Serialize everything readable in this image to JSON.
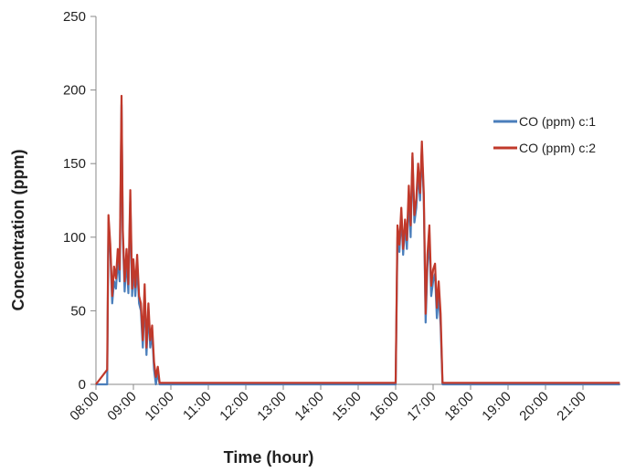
{
  "chart_data": {
    "type": "line",
    "title": "",
    "xlabel": "Time (hour)",
    "ylabel": "Concentration (ppm)",
    "xlim": [
      "08:00",
      "22:00"
    ],
    "ylim": [
      0,
      250
    ],
    "yticks": [
      0,
      50,
      100,
      150,
      200,
      250
    ],
    "xticks": [
      "08:00",
      "09:00",
      "10:00",
      "11:00",
      "12:00",
      "13:00",
      "14:00",
      "15:00",
      "16:00",
      "17:00",
      "18:00",
      "19:00",
      "20:00",
      "21:00"
    ],
    "grid": false,
    "legend": "right",
    "series": [
      {
        "name": "CO (ppm) c:1",
        "color": "#4a7ebb",
        "x": [
          "08:00",
          "08:18",
          "08:20",
          "08:23",
          "08:26",
          "08:29",
          "08:32",
          "08:35",
          "08:38",
          "08:41",
          "08:43",
          "08:46",
          "08:49",
          "08:52",
          "08:55",
          "08:58",
          "09:00",
          "09:03",
          "09:06",
          "09:09",
          "09:12",
          "09:15",
          "09:18",
          "09:21",
          "09:24",
          "09:27",
          "09:30",
          "09:33",
          "09:36",
          "09:39",
          "09:42",
          "09:45",
          "09:48",
          "09:51",
          "09:54",
          "09:57",
          "10:00",
          "10:03",
          "10:05",
          "10:08",
          "10:11",
          "10:14",
          "10:17",
          "16:00",
          "16:03",
          "16:06",
          "16:09",
          "16:12",
          "16:15",
          "16:18",
          "16:21",
          "16:24",
          "16:27",
          "16:30",
          "16:33",
          "16:36",
          "16:39",
          "16:42",
          "16:45",
          "16:48",
          "16:51",
          "16:54",
          "16:57",
          "17:00",
          "17:03",
          "17:06",
          "17:09",
          "17:12",
          "17:15",
          "17:18",
          "17:21",
          "17:24",
          "17:27",
          "17:30",
          "17:33",
          "17:36",
          "17:39",
          "17:42",
          "17:45",
          "17:48",
          "21:59"
        ],
        "values": [
          0,
          0,
          110,
          90,
          55,
          70,
          65,
          85,
          70,
          190,
          100,
          63,
          85,
          62,
          125,
          60,
          80,
          60,
          80,
          55,
          50,
          25,
          60,
          20,
          50,
          25,
          35,
          10,
          0,
          8,
          0,
          0,
          0,
          0,
          0,
          0,
          0,
          0,
          0,
          0,
          0,
          0,
          0,
          0,
          100,
          90,
          115,
          88,
          108,
          92,
          128,
          100,
          155,
          110,
          120,
          145,
          125,
          160,
          125,
          42,
          80,
          100,
          60,
          70,
          75,
          45,
          62,
          40,
          0,
          0,
          0,
          0,
          0,
          0,
          0,
          0,
          0,
          0,
          0,
          0,
          0
        ]
      },
      {
        "name": "CO (ppm) c:2",
        "color": "#c0392b",
        "x": [
          "08:00",
          "08:18",
          "08:20",
          "08:23",
          "08:26",
          "08:29",
          "08:32",
          "08:35",
          "08:38",
          "08:41",
          "08:43",
          "08:46",
          "08:49",
          "08:52",
          "08:55",
          "08:58",
          "09:00",
          "09:03",
          "09:06",
          "09:09",
          "09:12",
          "09:15",
          "09:18",
          "09:21",
          "09:24",
          "09:27",
          "09:30",
          "09:33",
          "09:36",
          "09:39",
          "09:42",
          "09:45",
          "09:48",
          "09:51",
          "09:54",
          "09:57",
          "10:00",
          "10:03",
          "10:05",
          "10:08",
          "10:11",
          "10:14",
          "10:17",
          "16:00",
          "16:03",
          "16:06",
          "16:09",
          "16:12",
          "16:15",
          "16:18",
          "16:21",
          "16:24",
          "16:27",
          "16:30",
          "16:33",
          "16:36",
          "16:39",
          "16:42",
          "16:45",
          "16:48",
          "16:51",
          "16:54",
          "16:57",
          "17:00",
          "17:03",
          "17:06",
          "17:09",
          "17:12",
          "17:15",
          "17:18",
          "17:21",
          "17:24",
          "17:27",
          "17:30",
          "17:33",
          "17:36",
          "17:39",
          "17:42",
          "17:45",
          "17:48",
          "21:59"
        ],
        "values": [
          0,
          10,
          115,
          95,
          60,
          80,
          72,
          92,
          78,
          196,
          105,
          70,
          92,
          68,
          132,
          65,
          85,
          66,
          88,
          60,
          55,
          30,
          68,
          25,
          55,
          30,
          40,
          15,
          5,
          12,
          1,
          1,
          1,
          1,
          1,
          1,
          1,
          1,
          1,
          1,
          1,
          1,
          1,
          1,
          108,
          95,
          120,
          92,
          112,
          98,
          135,
          108,
          157,
          115,
          126,
          150,
          130,
          165,
          130,
          48,
          88,
          108,
          67,
          78,
          82,
          52,
          70,
          48,
          1,
          1,
          1,
          1,
          1,
          1,
          1,
          1,
          1,
          1,
          1,
          1,
          1
        ]
      }
    ]
  }
}
